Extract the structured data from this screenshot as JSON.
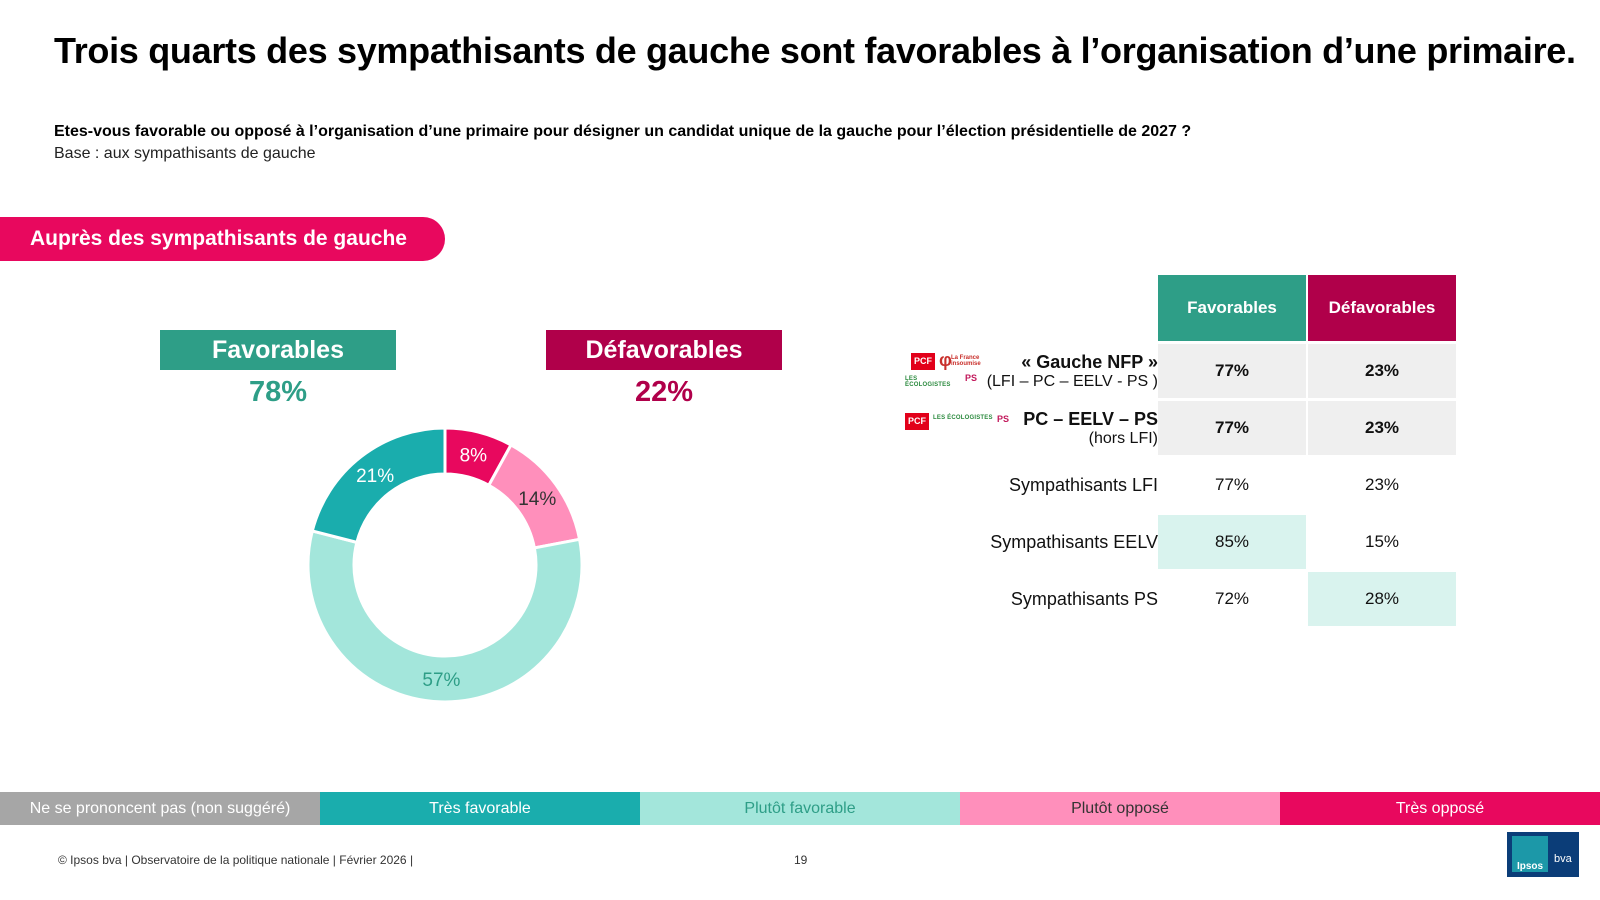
{
  "title": "Trois quarts des sympathisants de gauche sont favorables à l’organisation d’une primaire.",
  "question": "Etes-vous favorable ou opposé à l’organisation d’une primaire pour désigner un candidat unique de la gauche pour l’élection présidentielle de 2027 ?",
  "base": "Base : aux sympathisants de gauche",
  "section_tag": "Auprès des sympathisants de gauche",
  "summary": {
    "favorables_label": "Favorables",
    "favorables_value": "78%",
    "defavorables_label": "Défavorables",
    "defavorables_value": "22%"
  },
  "logos": {
    "pcf": "PCF",
    "lfi_symbol": "φ",
    "lfi_text": "La France insoumise",
    "eco": "LES ÉCOLOGISTES",
    "ps": "PS"
  },
  "table": {
    "headers": [
      "Favorables",
      "Défavorables"
    ],
    "rows": [
      {
        "label": "« Gauche NFP »",
        "sub": "(LFI – PC – EELV - PS )",
        "fav": "77%",
        "def": "23%"
      },
      {
        "label": "PC – EELV – PS",
        "sub": "(hors LFI)",
        "fav": "77%",
        "def": "23%"
      },
      {
        "label": "Sympathisants LFI",
        "fav": "77%",
        "def": "23%"
      },
      {
        "label": "Sympathisants EELV",
        "fav": "85%",
        "def": "15%"
      },
      {
        "label": "Sympathisants PS",
        "fav": "72%",
        "def": "28%"
      }
    ]
  },
  "legend": [
    {
      "label": "Ne se prononcent pas (non suggéré)",
      "color": "#a6a6a6",
      "text_color": "#ffffff"
    },
    {
      "label": "Très favorable",
      "color": "#1aadad",
      "text_color": "#ffffff"
    },
    {
      "label": "Plutôt favorable",
      "color": "#a3e6db",
      "text_color": "#2e9e87"
    },
    {
      "label": "Plutôt opposé",
      "color": "#ff8fbb",
      "text_color": "#333333"
    },
    {
      "label": "Très opposé",
      "color": "#e8085e",
      "text_color": "#ffffff"
    }
  ],
  "footer": "© Ipsos bva | Observatoire de la politique nationale | Février 2026 |",
  "page_number": "19",
  "brand": {
    "name1": "Ipsos",
    "name2": "bva"
  },
  "chart_data": {
    "type": "pie",
    "variant": "donut",
    "categories": [
      "Très opposé",
      "Plutôt opposé",
      "Plutôt favorable",
      "Très favorable"
    ],
    "values": [
      8,
      14,
      57,
      21
    ],
    "labels": [
      "8%",
      "14%",
      "57%",
      "21%"
    ],
    "colors": [
      "#e8085e",
      "#ff8fbb",
      "#a3e6db",
      "#1aadad"
    ],
    "label_colors": [
      "#ffffff",
      "#333333",
      "#2e9e87",
      "#ffffff"
    ],
    "title": ""
  }
}
